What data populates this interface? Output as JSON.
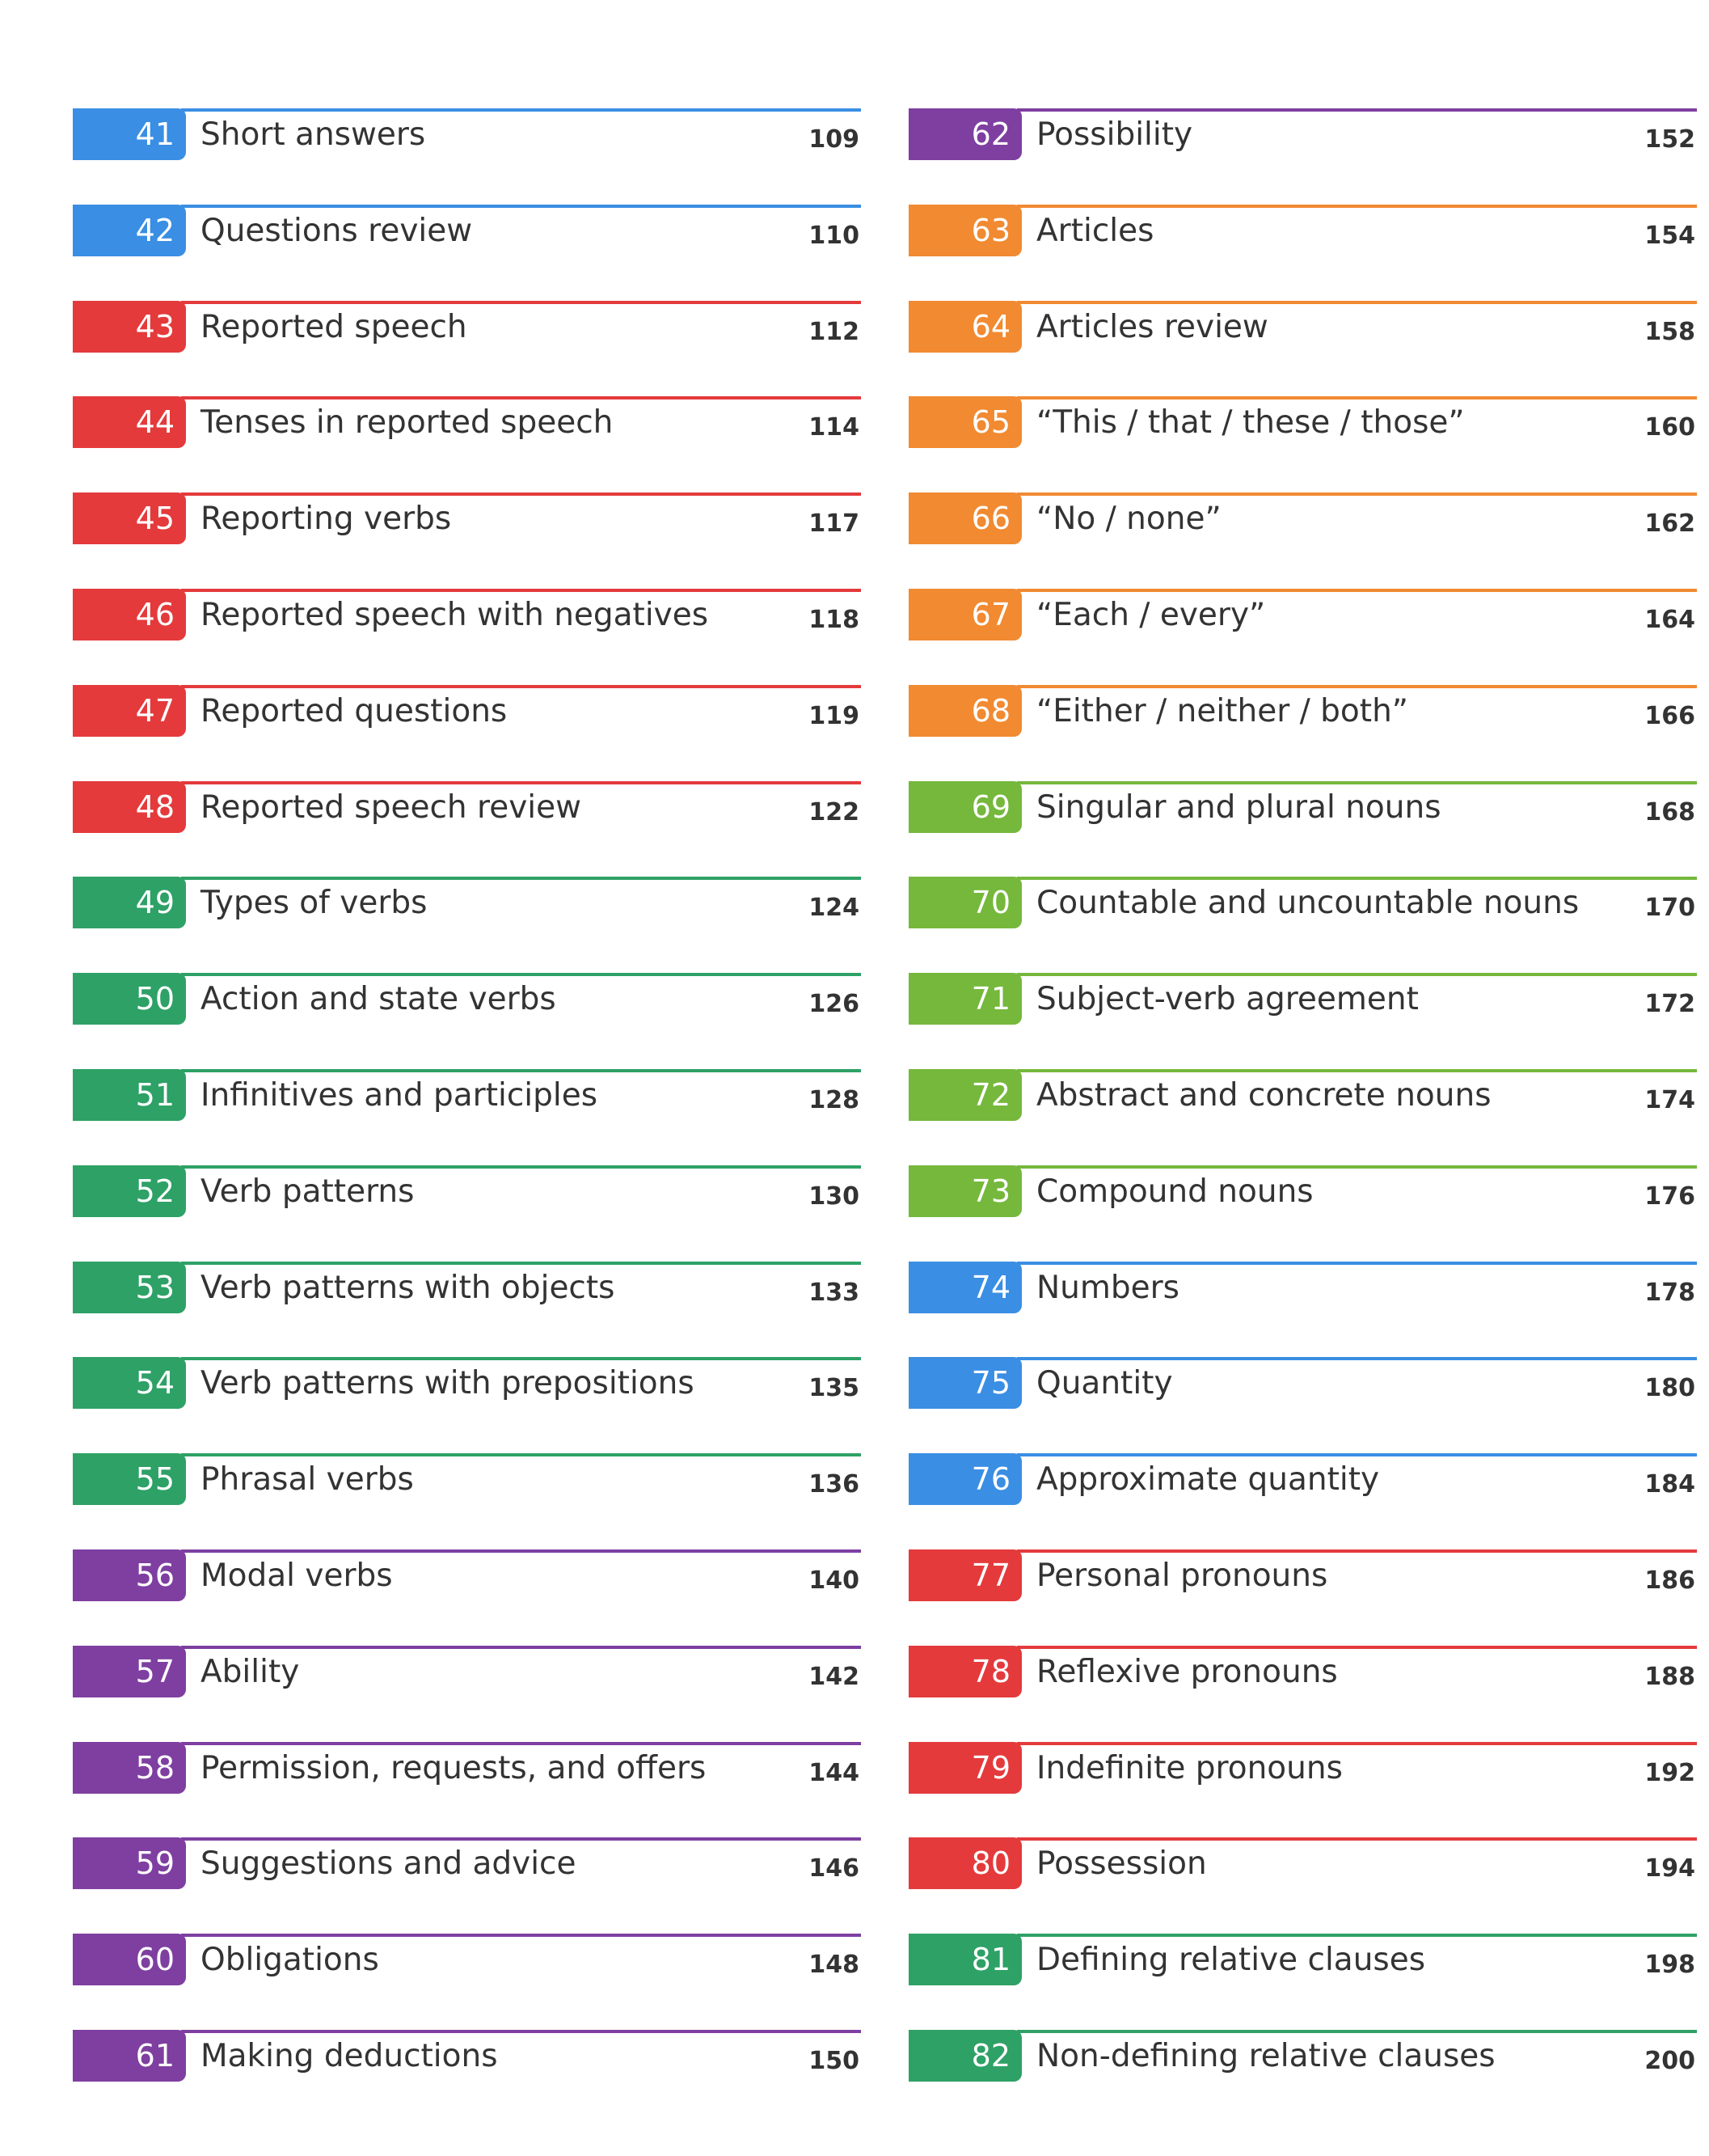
{
  "colors": {
    "blue": "#3a8ee3",
    "red": "#e43a3c",
    "green": "#2ea166",
    "purple": "#7e3fa1",
    "orange": "#f18a31",
    "lime": "#75b83c"
  },
  "left_column": [
    {
      "number": "41",
      "title": "Short answers",
      "page": "109",
      "color": "blue"
    },
    {
      "number": "42",
      "title": "Questions review",
      "page": "110",
      "color": "blue"
    },
    {
      "number": "43",
      "title": "Reported speech",
      "page": "112",
      "color": "red"
    },
    {
      "number": "44",
      "title": "Tenses in reported speech",
      "page": "114",
      "color": "red"
    },
    {
      "number": "45",
      "title": "Reporting verbs",
      "page": "117",
      "color": "red"
    },
    {
      "number": "46",
      "title": "Reported speech with negatives",
      "page": "118",
      "color": "red"
    },
    {
      "number": "47",
      "title": "Reported questions",
      "page": "119",
      "color": "red"
    },
    {
      "number": "48",
      "title": "Reported speech review",
      "page": "122",
      "color": "red"
    },
    {
      "number": "49",
      "title": "Types of verbs",
      "page": "124",
      "color": "green"
    },
    {
      "number": "50",
      "title": "Action and state verbs",
      "page": "126",
      "color": "green"
    },
    {
      "number": "51",
      "title": "Infinitives and participles",
      "page": "128",
      "color": "green"
    },
    {
      "number": "52",
      "title": "Verb patterns",
      "page": "130",
      "color": "green"
    },
    {
      "number": "53",
      "title": "Verb patterns with objects",
      "page": "133",
      "color": "green"
    },
    {
      "number": "54",
      "title": "Verb patterns with prepositions",
      "page": "135",
      "color": "green"
    },
    {
      "number": "55",
      "title": "Phrasal verbs",
      "page": "136",
      "color": "green"
    },
    {
      "number": "56",
      "title": "Modal verbs",
      "page": "140",
      "color": "purple"
    },
    {
      "number": "57",
      "title": "Ability",
      "page": "142",
      "color": "purple"
    },
    {
      "number": "58",
      "title": "Permission, requests, and offers",
      "page": "144",
      "color": "purple"
    },
    {
      "number": "59",
      "title": "Suggestions and advice",
      "page": "146",
      "color": "purple"
    },
    {
      "number": "60",
      "title": "Obligations",
      "page": "148",
      "color": "purple"
    },
    {
      "number": "61",
      "title": "Making deductions",
      "page": "150",
      "color": "purple"
    }
  ],
  "right_column": [
    {
      "number": "62",
      "title": "Possibility",
      "page": "152",
      "color": "purple"
    },
    {
      "number": "63",
      "title": "Articles",
      "page": "154",
      "color": "orange"
    },
    {
      "number": "64",
      "title": "Articles review",
      "page": "158",
      "color": "orange"
    },
    {
      "number": "65",
      "title": "“This / that / these / those”",
      "page": "160",
      "color": "orange"
    },
    {
      "number": "66",
      "title": "“No / none”",
      "page": "162",
      "color": "orange"
    },
    {
      "number": "67",
      "title": "“Each / every”",
      "page": "164",
      "color": "orange"
    },
    {
      "number": "68",
      "title": "“Either / neither / both”",
      "page": "166",
      "color": "orange"
    },
    {
      "number": "69",
      "title": "Singular and plural nouns",
      "page": "168",
      "color": "lime"
    },
    {
      "number": "70",
      "title": "Countable and uncountable nouns",
      "page": "170",
      "color": "lime"
    },
    {
      "number": "71",
      "title": "Subject-verb agreement",
      "page": "172",
      "color": "lime"
    },
    {
      "number": "72",
      "title": "Abstract and concrete nouns",
      "page": "174",
      "color": "lime"
    },
    {
      "number": "73",
      "title": "Compound nouns",
      "page": "176",
      "color": "lime"
    },
    {
      "number": "74",
      "title": "Numbers",
      "page": "178",
      "color": "blue"
    },
    {
      "number": "75",
      "title": "Quantity",
      "page": "180",
      "color": "blue"
    },
    {
      "number": "76",
      "title": "Approximate quantity",
      "page": "184",
      "color": "blue"
    },
    {
      "number": "77",
      "title": "Personal pronouns",
      "page": "186",
      "color": "red"
    },
    {
      "number": "78",
      "title": "Reflexive pronouns",
      "page": "188",
      "color": "red"
    },
    {
      "number": "79",
      "title": "Indefinite pronouns",
      "page": "192",
      "color": "red"
    },
    {
      "number": "80",
      "title": "Possession",
      "page": "194",
      "color": "red"
    },
    {
      "number": "81",
      "title": "Defining relative clauses",
      "page": "198",
      "color": "green"
    },
    {
      "number": "82",
      "title": "Non-defining relative clauses",
      "page": "200",
      "color": "green"
    }
  ]
}
